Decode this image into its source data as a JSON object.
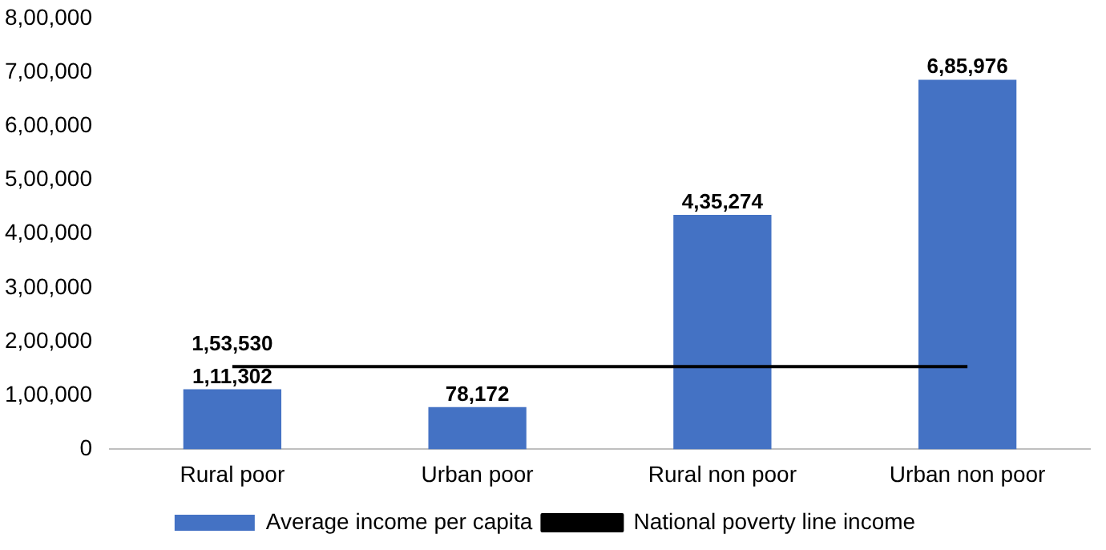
{
  "chart_data": {
    "type": "bar",
    "categories": [
      "Rural poor",
      "Urban poor",
      "Rural non poor",
      "Urban non poor"
    ],
    "series": [
      {
        "name": "Average income per capita",
        "color": "#4472c4",
        "values": [
          111302,
          78172,
          435274,
          685976
        ],
        "value_labels": [
          "1,11,302",
          "78,172",
          "4,35,274",
          "6,85,976"
        ]
      },
      {
        "name": "National poverty line income",
        "type": "line",
        "color": "#000000",
        "values": [
          153530,
          153530,
          153530,
          153530
        ],
        "value_labels": [
          "1,53,530",
          null,
          null,
          null
        ]
      }
    ],
    "ylim": [
      0,
      800000
    ],
    "yticks": [
      0,
      {
        "value": 100000,
        "label": "1,00,000"
      },
      {
        "value": 200000,
        "label": "2,00,000"
      },
      {
        "value": 300000,
        "label": "3,00,000"
      },
      {
        "value": 400000,
        "label": "4,00,000"
      },
      {
        "value": 500000,
        "label": "5,00,000"
      },
      {
        "value": 600000,
        "label": "6,00,000"
      },
      {
        "value": 700000,
        "label": "7,00,000"
      },
      {
        "value": 800000,
        "label": "8,00,000"
      }
    ],
    "grid": false,
    "legend": "bottom",
    "marker": "none"
  }
}
